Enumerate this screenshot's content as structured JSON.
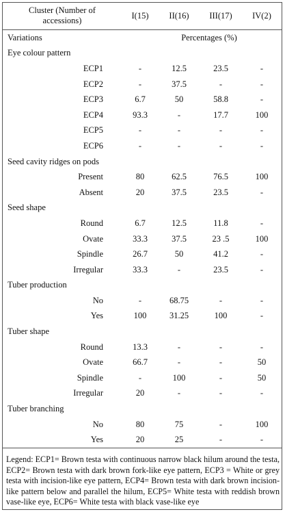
{
  "header": {
    "cluster_label": "Cluster (Number of accessions)",
    "columns": [
      "I(15)",
      "II(16)",
      "III(17)",
      "IV(2)"
    ]
  },
  "variations_label": "Variations",
  "percent_label": "Percentages (%)",
  "sections": [
    {
      "title": "Eye colour pattern",
      "rows": [
        {
          "label": "ECP1",
          "values": [
            "-",
            "12.5",
            "23.5",
            "-"
          ]
        },
        {
          "label": "ECP2",
          "values": [
            "-",
            "37.5",
            "-",
            "-"
          ]
        },
        {
          "label": "ECP3",
          "values": [
            "6.7",
            "50",
            "58.8",
            "-"
          ]
        },
        {
          "label": "ECP4",
          "values": [
            "93.3",
            "-",
            "17.7",
            "100"
          ]
        },
        {
          "label": "ECP5",
          "values": [
            "-",
            "-",
            "-",
            "-"
          ]
        },
        {
          "label": "ECP6",
          "values": [
            "-",
            "-",
            "-",
            "-"
          ]
        }
      ]
    },
    {
      "title": "Seed cavity ridges on pods",
      "rows": [
        {
          "label": "Present",
          "values": [
            "80",
            "62.5",
            "76.5",
            "100"
          ]
        },
        {
          "label": "Absent",
          "values": [
            "20",
            "37.5",
            "23.5",
            "-"
          ]
        }
      ]
    },
    {
      "title": "Seed shape",
      "rows": [
        {
          "label": "Round",
          "values": [
            "6.7",
            "12.5",
            "11.8",
            "-"
          ]
        },
        {
          "label": "Ovate",
          "values": [
            "33.3",
            "37.5",
            "23 .5",
            "100"
          ]
        },
        {
          "label": "Spindle",
          "values": [
            "26.7",
            "50",
            "41.2",
            "-"
          ]
        },
        {
          "label": "Irregular",
          "values": [
            "33.3",
            "-",
            "23.5",
            "-"
          ]
        }
      ]
    },
    {
      "title": "Tuber production",
      "rows": [
        {
          "label": "No",
          "values": [
            "-",
            "68.75",
            "-",
            "-"
          ]
        },
        {
          "label": "Yes",
          "values": [
            "100",
            "31.25",
            "100",
            "-"
          ]
        }
      ]
    },
    {
      "title": "Tuber shape",
      "rows": [
        {
          "label": "Round",
          "values": [
            "13.3",
            "-",
            "-",
            "-"
          ]
        },
        {
          "label": "Ovate",
          "values": [
            "66.7",
            "-",
            "-",
            "50"
          ]
        },
        {
          "label": "Spindle",
          "values": [
            "-",
            "100",
            "-",
            "50"
          ]
        },
        {
          "label": "Irregular",
          "values": [
            "20",
            "-",
            "-",
            "-"
          ]
        }
      ]
    },
    {
      "title": "Tuber branching",
      "rows": [
        {
          "label": "No",
          "values": [
            "80",
            "75",
            "-",
            "100"
          ]
        },
        {
          "label": "Yes",
          "values": [
            "20",
            "25",
            "-",
            "-"
          ]
        }
      ]
    }
  ],
  "legend": "Legend: ECP1= Brown testa with continuous narrow black hilum around the testa, ECP2= Brown testa with dark brown fork-like eye pattern, ECP3 = White or grey testa with incision-like eye pattern, ECP4= Brown testa with dark brown incision-like pattern below and parallel the hilum, ECP5= White testa with reddish brown vase-like eye, ECP6= White testa with black vase-like eye"
}
